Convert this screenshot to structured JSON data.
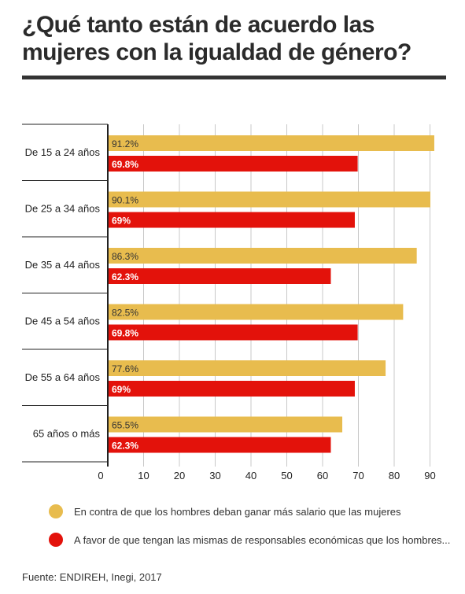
{
  "title": "¿Qué tanto están de acuerdo las mujeres con la igualdad de género?",
  "source": "Fuente: ENDIREH, Inegi, 2017",
  "colors": {
    "against": "#e8bc4e",
    "favor": "#e3120b",
    "grid": "#c8c8c8",
    "axis": "#222222"
  },
  "chart_data": {
    "type": "bar",
    "orientation": "horizontal",
    "categories": [
      "De 15 a 24 años",
      "De 25 a 34 años",
      "De 35 a 44 años",
      "De 45 a 54 años",
      "De 55 a 64 años",
      "65 años o más"
    ],
    "series": [
      {
        "name": "En contra de que los hombres deban ganar más salario que las mujeres",
        "values": [
          91.2,
          90.1,
          86.3,
          82.5,
          77.6,
          65.5
        ],
        "labels": [
          "91.2%",
          "90.1%",
          "86.3%",
          "82.5%",
          "77.6%",
          "65.5%"
        ]
      },
      {
        "name": "A favor de que tengan las mismas de responsables económicas que los hombres...",
        "values": [
          69.8,
          69,
          62.3,
          69.8,
          69,
          62.3
        ],
        "labels": [
          "69.8%",
          "69%",
          "62.3%",
          "69.8%",
          "69%",
          "62.3%"
        ]
      }
    ],
    "xlim": [
      0,
      92
    ],
    "xticks": [
      "0",
      "10",
      "20",
      "30",
      "40",
      "50",
      "60",
      "70",
      "80",
      "90"
    ],
    "legend_position": "bottom",
    "grid": true
  }
}
